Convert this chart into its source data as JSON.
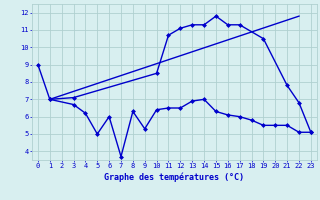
{
  "line1_x": [
    0,
    1,
    3,
    10,
    11,
    12,
    13,
    14,
    15,
    16,
    17,
    19,
    21,
    22,
    23
  ],
  "line1_y": [
    9,
    7,
    7.1,
    8.5,
    10.7,
    11.1,
    11.3,
    11.3,
    11.8,
    11.3,
    11.3,
    10.5,
    7.8,
    6.8,
    5.1
  ],
  "line2_x": [
    1,
    22
  ],
  "line2_y": [
    7,
    11.8
  ],
  "line3_x": [
    1,
    3,
    4,
    5,
    6,
    7,
    8,
    9,
    10,
    11,
    12,
    13,
    14,
    15,
    16,
    17,
    18,
    19,
    20,
    21,
    22,
    23
  ],
  "line3_y": [
    7,
    6.7,
    6.2,
    5.0,
    6.0,
    3.7,
    6.3,
    5.3,
    6.4,
    6.5,
    6.5,
    6.9,
    7.0,
    6.3,
    6.1,
    6.0,
    5.8,
    5.5,
    5.5,
    5.5,
    5.1,
    5.1
  ],
  "color": "#0000cc",
  "bg_color": "#d8eff0",
  "grid_color": "#b0d0d0",
  "xlabel": "Graphe des températures (°C)",
  "xlim": [
    -0.5,
    23.5
  ],
  "ylim": [
    3.5,
    12.5
  ],
  "yticks": [
    4,
    5,
    6,
    7,
    8,
    9,
    10,
    11,
    12
  ],
  "xticks": [
    0,
    1,
    2,
    3,
    4,
    5,
    6,
    7,
    8,
    9,
    10,
    11,
    12,
    13,
    14,
    15,
    16,
    17,
    18,
    19,
    20,
    21,
    22,
    23
  ],
  "marker": "D",
  "markersize": 2.5,
  "linewidth": 1.0,
  "tick_fontsize": 5.0,
  "xlabel_fontsize": 6.0
}
